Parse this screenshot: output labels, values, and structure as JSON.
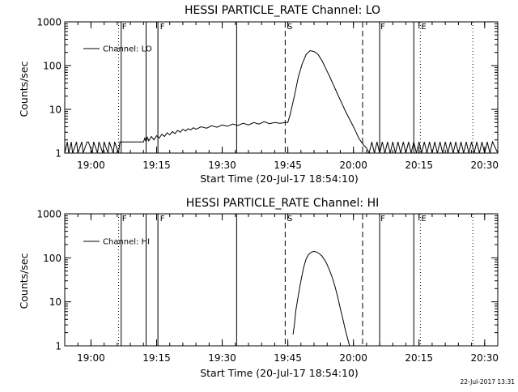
{
  "footer_timestamp": "22-Jul-2017 13:31",
  "chart_data": [
    {
      "type": "line",
      "title": "HESSI PARTICLE_RATE Channel: LO",
      "xlabel": "Start Time (20-Jul-17 18:54:10)",
      "ylabel": "Counts/sec",
      "y_scale": "log",
      "ylim": [
        1,
        1000
      ],
      "y_ticks": [
        "1",
        "10",
        "100",
        "1000"
      ],
      "xlim_minutes": [
        18.9,
        20.55
      ],
      "x_ticks": [
        "19:00",
        "19:15",
        "19:30",
        "19:45",
        "20:00",
        "20:15",
        "20:30"
      ],
      "x_tick_values": [
        19.0,
        19.25,
        19.5,
        19.75,
        20.0,
        20.25,
        20.5
      ],
      "legend": {
        "label": "Channel: LO",
        "placement": "top-left"
      },
      "solid_markers": [
        19.115,
        19.21,
        19.255,
        19.555,
        20.1,
        20.23
      ],
      "dashed_markers": [
        19.74,
        20.035
      ],
      "dotted_markers": [
        19.105,
        20.255,
        20.455
      ],
      "flag_labels": [
        {
          "text": "F",
          "x": 19.115
        },
        {
          "text": "F",
          "x": 19.26
        },
        {
          "text": "S",
          "x": 19.745
        },
        {
          "text": "F",
          "x": 20.1
        },
        {
          "text": "E",
          "x": 20.255
        }
      ],
      "series": [
        {
          "name": "Channel: LO",
          "x": [
            18.9,
            18.91,
            18.915,
            18.925,
            18.93,
            18.945,
            18.95,
            18.965,
            18.97,
            18.985,
            18.99,
            19.005,
            19.01,
            19.025,
            19.03,
            19.045,
            19.05,
            19.065,
            19.07,
            19.085,
            19.09,
            19.105,
            19.11,
            19.2,
            19.205,
            19.21,
            19.215,
            19.22,
            19.23,
            19.24,
            19.25,
            19.26,
            19.27,
            19.28,
            19.29,
            19.3,
            19.31,
            19.32,
            19.33,
            19.34,
            19.35,
            19.36,
            19.37,
            19.38,
            19.39,
            19.4,
            19.42,
            19.44,
            19.46,
            19.48,
            19.5,
            19.52,
            19.54,
            19.56,
            19.58,
            19.6,
            19.62,
            19.64,
            19.66,
            19.68,
            19.7,
            19.72,
            19.74,
            19.75,
            19.76,
            19.775,
            19.79,
            19.805,
            19.82,
            19.835,
            19.85,
            19.865,
            19.88,
            19.895,
            19.91,
            19.925,
            19.94,
            19.955,
            19.97,
            19.985,
            20.0,
            20.01,
            20.02,
            20.03,
            20.04,
            20.05,
            20.06,
            20.07,
            20.08,
            20.09,
            20.1,
            20.11,
            20.12,
            20.13,
            20.14,
            20.15,
            20.16,
            20.17,
            20.18,
            20.19,
            20.2,
            20.21,
            20.22,
            20.23,
            20.24,
            20.25,
            20.26,
            20.27,
            20.28,
            20.29,
            20.3,
            20.31,
            20.32,
            20.33,
            20.34,
            20.35,
            20.36,
            20.37,
            20.38,
            20.39,
            20.4,
            20.41,
            20.42,
            20.43,
            20.44,
            20.45,
            20.46,
            20.47,
            20.48,
            20.49,
            20.5,
            20.51,
            20.52,
            20.53,
            20.55
          ],
          "y": [
            1,
            1.8,
            1,
            1.8,
            1,
            1.8,
            1,
            1.8,
            1,
            1.8,
            1.8,
            1,
            1.8,
            1,
            1.8,
            1,
            1.8,
            1,
            1.8,
            1,
            1.8,
            1,
            1.8,
            1.8,
            2.2,
            1.8,
            2.3,
            1.9,
            2.4,
            2.0,
            2.5,
            2.2,
            2.7,
            2.4,
            2.9,
            2.6,
            3.1,
            2.8,
            3.3,
            3.0,
            3.5,
            3.2,
            3.6,
            3.4,
            3.8,
            3.5,
            4.0,
            3.7,
            4.2,
            3.9,
            4.4,
            4.1,
            4.6,
            4.3,
            4.8,
            4.4,
            5.0,
            4.6,
            5.2,
            4.7,
            5.0,
            4.8,
            5.0,
            5.0,
            8,
            20,
            55,
            110,
            180,
            220,
            210,
            180,
            130,
            85,
            55,
            35,
            22,
            14,
            9,
            6,
            4,
            3,
            2.2,
            1.8,
            1.5,
            1.3,
            1,
            1.8,
            1,
            1.8,
            1,
            1.8,
            1,
            1.8,
            1,
            1.8,
            1,
            1.8,
            1,
            1.8,
            1,
            1.8,
            1,
            1.8,
            1,
            1.8,
            1,
            1.8,
            1,
            1.8,
            1,
            1.8,
            1,
            1.8,
            1,
            1.8,
            1,
            1.8,
            1,
            1.8,
            1,
            1.8,
            1,
            1.8,
            1,
            1.8,
            1,
            1.8,
            1,
            1.8,
            1,
            1.8,
            1,
            1.8,
            1
          ]
        }
      ]
    },
    {
      "type": "line",
      "title": "HESSI PARTICLE_RATE Channel: HI",
      "xlabel": "Start Time (20-Jul-17 18:54:10)",
      "ylabel": "Counts/sec",
      "y_scale": "log",
      "ylim": [
        1,
        1000
      ],
      "y_ticks": [
        "1",
        "10",
        "100",
        "1000"
      ],
      "xlim_minutes": [
        18.9,
        20.55
      ],
      "x_ticks": [
        "19:00",
        "19:15",
        "19:30",
        "19:45",
        "20:00",
        "20:15",
        "20:30"
      ],
      "x_tick_values": [
        19.0,
        19.25,
        19.5,
        19.75,
        20.0,
        20.25,
        20.5
      ],
      "legend": {
        "label": "Channel: HI",
        "placement": "top-left"
      },
      "solid_markers": [
        19.115,
        19.21,
        19.255,
        19.555,
        20.1,
        20.23
      ],
      "dashed_markers": [
        19.74,
        20.035
      ],
      "dotted_markers": [
        19.105,
        20.255,
        20.455
      ],
      "flag_labels": [
        {
          "text": "F",
          "x": 19.115
        },
        {
          "text": "F",
          "x": 19.26
        },
        {
          "text": "S",
          "x": 19.745
        },
        {
          "text": "F",
          "x": 20.1
        },
        {
          "text": "E",
          "x": 20.255
        }
      ],
      "series": [
        {
          "name": "Channel: HI",
          "x": [
            19.77,
            19.775,
            19.78,
            19.79,
            19.8,
            19.81,
            19.82,
            19.83,
            19.84,
            19.85,
            19.86,
            19.87,
            19.88,
            19.89,
            19.9,
            19.91,
            19.92,
            19.93,
            19.94,
            19.95,
            19.96,
            19.97,
            19.98,
            19.985
          ],
          "y": [
            1.8,
            3,
            6,
            14,
            30,
            60,
            95,
            120,
            135,
            140,
            135,
            125,
            110,
            90,
            70,
            50,
            35,
            22,
            13,
            7,
            4,
            2.2,
            1.3,
            1
          ]
        }
      ]
    }
  ]
}
